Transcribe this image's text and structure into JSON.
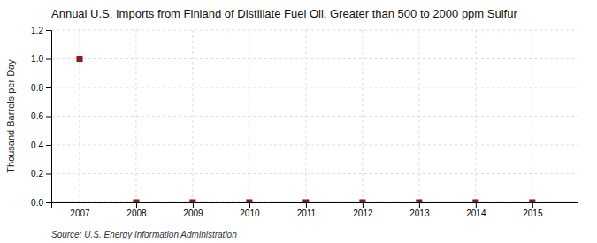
{
  "chart_data": {
    "type": "scatter",
    "title": "Annual U.S. Imports from Finland of Distillate Fuel Oil, Greater than 500 to 2000 ppm Sulfur",
    "y_label": "Thousand Barrels per Day",
    "source": "Source: U.S. Energy Information Administration",
    "x": [
      2007,
      2008,
      2009,
      2010,
      2011,
      2012,
      2013,
      2014,
      2015
    ],
    "values": [
      1.0,
      0.0,
      0.0,
      0.0,
      0.0,
      0.0,
      0.0,
      0.0,
      0.0
    ],
    "color": "#8B1A1A",
    "marker": "square",
    "xlim": [
      2006.5,
      2015.8
    ],
    "ylim": [
      0.0,
      1.2
    ],
    "xticks": [
      2007,
      2008,
      2009,
      2010,
      2011,
      2012,
      2013,
      2014,
      2015
    ],
    "yticks": [
      {
        "value": 0.0,
        "label": "0.0"
      },
      0.2,
      0.4,
      0.6,
      0.8,
      {
        "value": 1.0,
        "label": "1.0"
      },
      1.2
    ],
    "grid": true
  }
}
